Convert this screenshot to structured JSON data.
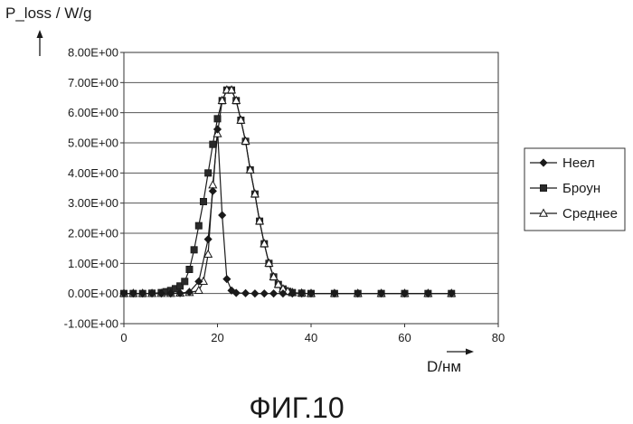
{
  "chart_data": {
    "type": "line",
    "ylabel": "P_loss / W/g",
    "xlabel": "D/нм",
    "xlim": [
      0,
      80
    ],
    "ylim": [
      -1.0,
      8.0
    ],
    "x_ticks": [
      "0",
      "20",
      "40",
      "60",
      "80"
    ],
    "y_ticks": [
      "-1.00E+00",
      "0.00E+00",
      "1.00E+00",
      "2.00E+00",
      "3.00E+00",
      "4.00E+00",
      "5.00E+00",
      "6.00E+00",
      "7.00E+00",
      "8.00E+00"
    ],
    "grid": "horizontal",
    "legend_position": "right",
    "series": [
      {
        "name": "Неел",
        "marker": "diamond",
        "x": [
          0,
          2,
          4,
          6,
          8,
          10,
          12,
          14,
          16,
          18,
          19,
          20,
          21,
          22,
          23,
          24,
          26,
          28,
          30,
          32,
          34,
          36,
          38,
          40,
          45,
          50,
          55,
          60,
          65,
          70
        ],
        "y": [
          0,
          0,
          0,
          0,
          0,
          0,
          0.01,
          0.05,
          0.4,
          1.8,
          3.4,
          5.45,
          2.6,
          0.48,
          0.1,
          0.02,
          0.01,
          0,
          0,
          0,
          0,
          0,
          0,
          0,
          0,
          0,
          0,
          0,
          0,
          0
        ]
      },
      {
        "name": "Броун",
        "marker": "square",
        "x": [
          0,
          2,
          4,
          6,
          8,
          9,
          10,
          11,
          12,
          13,
          14,
          15,
          16,
          17,
          18,
          19,
          20,
          21,
          22,
          23,
          24,
          25,
          26,
          27,
          28,
          29,
          30,
          31,
          32,
          33,
          34,
          35,
          36,
          38,
          40,
          45,
          50,
          55,
          60,
          65,
          70
        ],
        "y": [
          0,
          0,
          0,
          0.01,
          0.03,
          0.06,
          0.1,
          0.16,
          0.25,
          0.4,
          0.8,
          1.45,
          2.25,
          3.05,
          4.0,
          4.95,
          5.8,
          6.4,
          6.75,
          6.75,
          6.4,
          5.75,
          5.05,
          4.1,
          3.3,
          2.4,
          1.65,
          1.0,
          0.55,
          0.3,
          0.15,
          0.07,
          0.03,
          0.01,
          0,
          0,
          0,
          0,
          0,
          0,
          0
        ]
      },
      {
        "name": "Среднее",
        "marker": "triangle",
        "x": [
          0,
          2,
          4,
          6,
          8,
          10,
          12,
          14,
          16,
          17,
          18,
          19,
          20,
          21,
          22,
          23,
          24,
          25,
          26,
          27,
          28,
          29,
          30,
          31,
          32,
          33,
          34,
          35,
          36,
          38,
          40,
          45,
          50,
          55,
          60,
          65,
          70
        ],
        "y": [
          0,
          0,
          0,
          0,
          0,
          0,
          0.01,
          0.03,
          0.1,
          0.4,
          1.3,
          3.6,
          5.3,
          6.4,
          6.75,
          6.75,
          6.4,
          5.75,
          5.05,
          4.1,
          3.3,
          2.4,
          1.65,
          1.0,
          0.55,
          0.3,
          0.15,
          0.07,
          0.03,
          0.01,
          0,
          0,
          0,
          0,
          0,
          0,
          0
        ]
      }
    ]
  },
  "figure_caption": "ФИГ.10"
}
